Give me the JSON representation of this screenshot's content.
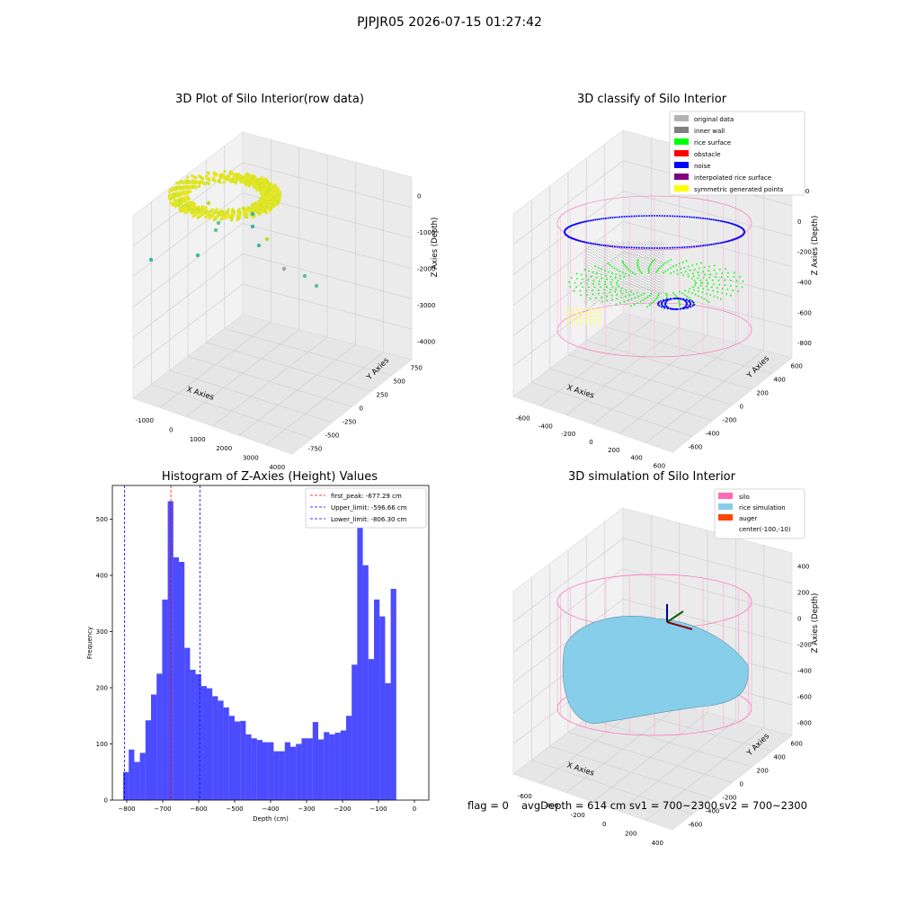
{
  "suptitle": "PJPJR05 2026-07-15 01:27:42",
  "panel1": {
    "title": "3D Plot of Silo Interior(row data)",
    "xlabel": "X Axies",
    "ylabel": "Y Axies",
    "zlabel": "Z Axies (Depth)",
    "xticks": [
      "-1000",
      "0",
      "1000",
      "2000",
      "3000",
      "4000"
    ],
    "yticks": [
      "750",
      "500",
      "250",
      "0",
      "-250",
      "-500",
      "-750"
    ],
    "zticks": [
      "0",
      "-1000",
      "-2000",
      "-3000",
      "-4000"
    ]
  },
  "panel2": {
    "title": "3D classify of Silo Interior",
    "xlabel": "X Axies",
    "ylabel": "Y Axies",
    "zlabel": "Z Axies (Depth)",
    "xticks": [
      "-600",
      "-400",
      "-200",
      "0",
      "200",
      "400",
      "600"
    ],
    "yticks": [
      "600",
      "400",
      "200",
      "0",
      "-200",
      "-400",
      "-600"
    ],
    "zticks": [
      "200",
      "0",
      "-200",
      "-400",
      "-600",
      "-800"
    ],
    "legend": [
      {
        "label": "original data",
        "color": "#b3b3b3"
      },
      {
        "label": "inner wall",
        "color": "#808080"
      },
      {
        "label": "rice surface",
        "color": "#00ff00"
      },
      {
        "label": "obstacle",
        "color": "#ff0000"
      },
      {
        "label": "noise",
        "color": "#0000ff"
      },
      {
        "label": "interpolated rice surface",
        "color": "#800080"
      },
      {
        "label": "symmetric generated points",
        "color": "#ffff00"
      }
    ]
  },
  "panel4": {
    "title": "3D simulation of Silo Interior",
    "xlabel": "X Axies",
    "ylabel": "Y Axies",
    "zlabel": "Z Axies (Depth)",
    "xticks": [
      "-600",
      "-400",
      "-200",
      "0",
      "200",
      "400"
    ],
    "yticks": [
      "600",
      "400",
      "200",
      "0",
      "-200",
      "-400",
      "-600"
    ],
    "zticks": [
      "400",
      "200",
      "0",
      "-200",
      "-400",
      "-600",
      "-800"
    ],
    "legend": [
      {
        "label": "silo",
        "color": "#ff69b4"
      },
      {
        "label": "rice simulation",
        "color": "#87ceeb"
      },
      {
        "label": "auger",
        "color": "#ff4500"
      },
      {
        "label": "center(-100,-10)",
        "color": ""
      }
    ]
  },
  "footer": {
    "flag": "flag = 0",
    "avgdepth": "avgDepth = 614 cm",
    "sv1": "sv1 = 700~2300",
    "sv2": "sv2 = 700~2300"
  },
  "chart_data": [
    {
      "type": "bar",
      "title": "Histogram of Z-Axies (Height) Values",
      "xlabel": "Depth (cm)",
      "ylabel": "Frequency",
      "xlim": [
        -840,
        40
      ],
      "ylim": [
        0,
        560
      ],
      "xticks": [
        -800,
        -700,
        -600,
        -500,
        -400,
        -300,
        -200,
        -100,
        0
      ],
      "yticks": [
        0,
        100,
        200,
        300,
        400,
        500
      ],
      "bar_color": "#0000ff",
      "bin_start": -810,
      "bin_width": 15.5,
      "values": [
        50,
        90,
        68,
        84,
        142,
        188,
        225,
        357,
        532,
        432,
        424,
        271,
        232,
        224,
        203,
        199,
        185,
        177,
        165,
        150,
        140,
        141,
        117,
        110,
        107,
        103,
        103,
        87,
        87,
        103,
        95,
        100,
        110,
        110,
        139,
        108,
        121,
        117,
        120,
        124,
        150,
        241,
        486,
        418,
        251,
        357,
        327,
        208,
        376
      ],
      "lines": [
        {
          "x": -677.29,
          "color": "#ff0000",
          "label": "first_peak: -677.29 cm"
        },
        {
          "x": -596.66,
          "color": "#0000ff",
          "label": "Upper_limit: -596.66 cm"
        },
        {
          "x": -806.3,
          "color": "#0000ff",
          "label": "Lower_limit: -806.30 cm"
        }
      ],
      "legend_position": "upper right"
    }
  ]
}
